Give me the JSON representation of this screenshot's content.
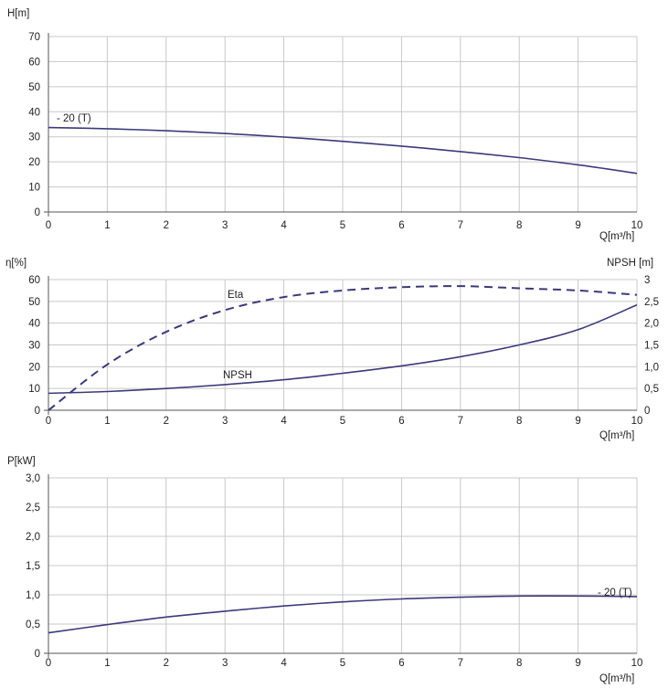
{
  "colors": {
    "curve": "#3a3a7a",
    "grid": "#c8c8c8",
    "axis": "#555555",
    "text": "#222222"
  },
  "chart_data": [
    {
      "type": "line",
      "title": "",
      "xlabel": "Q[m³/h]",
      "ylabel": "H[m]",
      "xlim": [
        0,
        10
      ],
      "ylim": [
        0,
        70
      ],
      "x_ticks": [
        "0",
        "1",
        "2",
        "3",
        "4",
        "5",
        "6",
        "7",
        "8",
        "9",
        "10"
      ],
      "y_ticks": [
        "0",
        "10",
        "20",
        "30",
        "40",
        "50",
        "60",
        "70"
      ],
      "grid": true,
      "series": [
        {
          "name": "- 20 (T)",
          "style": "solid",
          "x": [
            0,
            1,
            2,
            3,
            4,
            5,
            6,
            7,
            8,
            9,
            10
          ],
          "y": [
            33.7,
            33.2,
            32.4,
            31.3,
            29.9,
            28.2,
            26.3,
            24.1,
            21.7,
            18.8,
            15.4
          ]
        }
      ]
    },
    {
      "type": "line",
      "title": "",
      "xlabel": "Q[m³/h]",
      "ylabel": "η[%]",
      "y2label": "NPSH [m]",
      "xlim": [
        0,
        10
      ],
      "ylim": [
        0,
        60
      ],
      "y2lim": [
        0,
        3
      ],
      "x_ticks": [
        "0",
        "1",
        "2",
        "3",
        "4",
        "5",
        "6",
        "7",
        "8",
        "9",
        "10"
      ],
      "y_ticks": [
        "0",
        "10",
        "20",
        "30",
        "40",
        "50",
        "60"
      ],
      "y2_ticks": [
        "0",
        "0,5",
        "1,0",
        "1,5",
        "2,0",
        "2,5",
        "3"
      ],
      "grid": true,
      "series": [
        {
          "name": "Eta",
          "axis": "left",
          "style": "dashed",
          "x": [
            0,
            1,
            2,
            3,
            4,
            5,
            6,
            7,
            8,
            9,
            10
          ],
          "y": [
            0,
            21,
            36,
            46,
            52,
            55,
            56.5,
            57,
            56,
            55,
            53
          ]
        },
        {
          "name": "NPSH",
          "axis": "right",
          "style": "solid",
          "x": [
            0,
            1,
            2,
            3,
            4,
            5,
            6,
            7,
            8,
            9,
            10
          ],
          "y": [
            0.39,
            0.43,
            0.5,
            0.59,
            0.7,
            0.85,
            1.02,
            1.23,
            1.5,
            1.85,
            2.42
          ]
        }
      ]
    },
    {
      "type": "line",
      "title": "",
      "xlabel": "Q[m³/h]",
      "ylabel": "P[kW]",
      "xlim": [
        0,
        10
      ],
      "ylim": [
        0,
        3
      ],
      "x_ticks": [
        "0",
        "1",
        "2",
        "3",
        "4",
        "5",
        "6",
        "7",
        "8",
        "9",
        "10"
      ],
      "y_ticks": [
        "0",
        "0,5",
        "1,0",
        "1,5",
        "2,0",
        "2,5",
        "3,0"
      ],
      "grid": true,
      "series": [
        {
          "name": "- 20 (T)",
          "style": "solid",
          "x": [
            0,
            1,
            2,
            3,
            4,
            5,
            6,
            7,
            8,
            9,
            10
          ],
          "y": [
            0.35,
            0.49,
            0.62,
            0.72,
            0.81,
            0.88,
            0.93,
            0.96,
            0.98,
            0.98,
            0.97
          ]
        }
      ]
    }
  ]
}
